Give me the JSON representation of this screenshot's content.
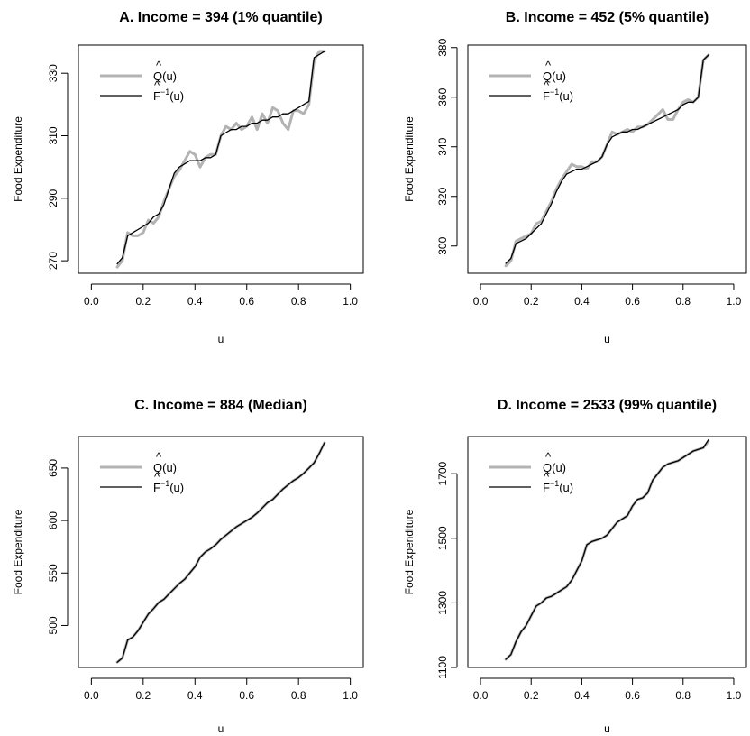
{
  "chart_data": [
    {
      "type": "line",
      "title": "A. Income = 394 (1% quantile)",
      "xlabel": "u",
      "ylabel": "Food Expenditure",
      "xlim": [
        -0.05,
        1.05
      ],
      "ylim": [
        266,
        339
      ],
      "xticks": [
        "0.0",
        "0.2",
        "0.4",
        "0.6",
        "0.8",
        "1.0"
      ],
      "yticks": [
        "270",
        "290",
        "310",
        "330"
      ],
      "legend": {
        "position": "top-left",
        "entries": [
          "Q(u)",
          "F(u)"
        ],
        "sup": "−1"
      },
      "series": [
        {
          "name": "Q(u)",
          "color": "#b3b3b3",
          "x": [
            0.1,
            0.12,
            0.14,
            0.16,
            0.18,
            0.2,
            0.22,
            0.24,
            0.26,
            0.28,
            0.3,
            0.32,
            0.34,
            0.36,
            0.38,
            0.4,
            0.42,
            0.44,
            0.46,
            0.48,
            0.5,
            0.52,
            0.54,
            0.56,
            0.58,
            0.6,
            0.62,
            0.64,
            0.66,
            0.68,
            0.7,
            0.72,
            0.74,
            0.76,
            0.78,
            0.8,
            0.82,
            0.84,
            0.86,
            0.88,
            0.9
          ],
          "y": [
            268,
            270,
            279,
            278,
            278,
            279,
            283,
            282,
            284,
            289,
            293,
            297,
            299,
            302,
            305,
            304,
            300,
            303,
            304,
            304,
            310,
            313,
            312,
            314,
            312,
            313,
            316,
            312,
            317,
            314,
            319,
            318,
            314,
            312,
            318,
            318,
            317,
            320,
            334,
            337,
            337
          ]
        },
        {
          "name": "F(u)",
          "color": "#000000",
          "x": [
            0.1,
            0.12,
            0.14,
            0.16,
            0.18,
            0.2,
            0.22,
            0.24,
            0.26,
            0.28,
            0.3,
            0.32,
            0.34,
            0.36,
            0.38,
            0.4,
            0.42,
            0.44,
            0.46,
            0.48,
            0.5,
            0.52,
            0.54,
            0.56,
            0.58,
            0.6,
            0.62,
            0.64,
            0.66,
            0.68,
            0.7,
            0.72,
            0.74,
            0.76,
            0.78,
            0.8,
            0.82,
            0.84,
            0.86,
            0.88,
            0.9
          ],
          "y": [
            269,
            271,
            278,
            279,
            280,
            281,
            282,
            284,
            285,
            288,
            293,
            298,
            300,
            301,
            302,
            302,
            302,
            303,
            303,
            304,
            310,
            311,
            312,
            312,
            313,
            313,
            314,
            314,
            315,
            315,
            316,
            316,
            317,
            317,
            318,
            319,
            320,
            321,
            335,
            336,
            337
          ]
        }
      ]
    },
    {
      "type": "line",
      "title": "B. Income = 452 (5% quantile)",
      "xlabel": "u",
      "ylabel": "Food Expenditure",
      "xlim": [
        -0.05,
        1.05
      ],
      "ylim": [
        289,
        381
      ],
      "xticks": [
        "0.0",
        "0.2",
        "0.4",
        "0.6",
        "0.8",
        "1.0"
      ],
      "yticks": [
        "300",
        "320",
        "340",
        "360",
        "380"
      ],
      "legend": {
        "position": "top-left",
        "entries": [
          "Q(u)",
          "F(u)"
        ],
        "sup": "−1"
      },
      "series": [
        {
          "name": "Q(u)",
          "color": "#b3b3b3",
          "x": [
            0.1,
            0.12,
            0.14,
            0.16,
            0.18,
            0.2,
            0.22,
            0.24,
            0.26,
            0.28,
            0.3,
            0.32,
            0.34,
            0.36,
            0.38,
            0.4,
            0.42,
            0.44,
            0.46,
            0.48,
            0.5,
            0.52,
            0.54,
            0.56,
            0.58,
            0.6,
            0.62,
            0.64,
            0.66,
            0.68,
            0.7,
            0.72,
            0.74,
            0.76,
            0.78,
            0.8,
            0.82,
            0.84,
            0.86,
            0.88,
            0.9
          ],
          "y": [
            292,
            294,
            302,
            303,
            304,
            305,
            309,
            310,
            314,
            318,
            323,
            327,
            330,
            333,
            332,
            332,
            331,
            334,
            334,
            336,
            341,
            346,
            345,
            346,
            347,
            346,
            348,
            348,
            349,
            351,
            353,
            355,
            351,
            351,
            355,
            358,
            359,
            358,
            360,
            375,
            377
          ]
        },
        {
          "name": "F(u)",
          "color": "#000000",
          "x": [
            0.1,
            0.12,
            0.14,
            0.16,
            0.18,
            0.2,
            0.22,
            0.24,
            0.26,
            0.28,
            0.3,
            0.32,
            0.34,
            0.36,
            0.38,
            0.4,
            0.42,
            0.44,
            0.46,
            0.48,
            0.5,
            0.52,
            0.54,
            0.56,
            0.58,
            0.6,
            0.62,
            0.64,
            0.66,
            0.68,
            0.7,
            0.72,
            0.74,
            0.76,
            0.78,
            0.8,
            0.82,
            0.84,
            0.86,
            0.88,
            0.9
          ],
          "y": [
            293,
            295,
            301,
            302,
            303,
            305,
            307,
            309,
            313,
            317,
            322,
            326,
            329,
            330,
            331,
            331,
            332,
            333,
            334,
            336,
            341,
            344,
            345,
            346,
            346,
            347,
            347,
            348,
            349,
            350,
            351,
            352,
            353,
            354,
            355,
            357,
            358,
            358,
            360,
            375,
            377
          ]
        }
      ]
    },
    {
      "type": "line",
      "title": "C. Income = 884 (Median)",
      "xlabel": "u",
      "ylabel": "Food Expenditure",
      "xlim": [
        -0.05,
        1.05
      ],
      "ylim": [
        460,
        680
      ],
      "xticks": [
        "0.0",
        "0.2",
        "0.4",
        "0.6",
        "0.8",
        "1.0"
      ],
      "yticks": [
        "500",
        "550",
        "600",
        "650"
      ],
      "legend": {
        "position": "top-left",
        "entries": [
          "Q(u)",
          "F(u)"
        ],
        "sup": "−1"
      },
      "series": [
        {
          "name": "Q(u)",
          "color": "#b3b3b3",
          "x": [
            0.1,
            0.12,
            0.14,
            0.16,
            0.18,
            0.2,
            0.22,
            0.24,
            0.26,
            0.28,
            0.3,
            0.32,
            0.34,
            0.36,
            0.38,
            0.4,
            0.42,
            0.44,
            0.46,
            0.48,
            0.5,
            0.52,
            0.54,
            0.56,
            0.58,
            0.6,
            0.62,
            0.64,
            0.66,
            0.68,
            0.7,
            0.72,
            0.74,
            0.76,
            0.78,
            0.8,
            0.82,
            0.84,
            0.86,
            0.88,
            0.9
          ],
          "y": [
            465,
            469,
            486,
            489,
            495,
            503,
            511,
            516,
            522,
            525,
            530,
            535,
            540,
            544,
            550,
            556,
            565,
            570,
            573,
            577,
            582,
            586,
            590,
            594,
            597,
            600,
            603,
            607,
            612,
            617,
            620,
            625,
            630,
            634,
            638,
            641,
            645,
            650,
            655,
            664,
            674
          ]
        },
        {
          "name": "F(u)",
          "color": "#000000",
          "x": [
            0.1,
            0.12,
            0.14,
            0.16,
            0.18,
            0.2,
            0.22,
            0.24,
            0.26,
            0.28,
            0.3,
            0.32,
            0.34,
            0.36,
            0.38,
            0.4,
            0.42,
            0.44,
            0.46,
            0.48,
            0.5,
            0.52,
            0.54,
            0.56,
            0.58,
            0.6,
            0.62,
            0.64,
            0.66,
            0.68,
            0.7,
            0.72,
            0.74,
            0.76,
            0.78,
            0.8,
            0.82,
            0.84,
            0.86,
            0.88,
            0.9
          ],
          "y": [
            465,
            469,
            486,
            489,
            495,
            503,
            511,
            516,
            522,
            525,
            530,
            535,
            540,
            544,
            550,
            556,
            565,
            570,
            573,
            577,
            582,
            586,
            590,
            594,
            597,
            600,
            603,
            607,
            612,
            617,
            620,
            625,
            630,
            634,
            638,
            641,
            645,
            650,
            655,
            664,
            674
          ]
        }
      ]
    },
    {
      "type": "line",
      "title": "D. Income = 2533 (99% quantile)",
      "xlabel": "u",
      "ylabel": "Food Expenditure",
      "xlim": [
        -0.05,
        1.05
      ],
      "ylim": [
        1100,
        1815
      ],
      "xticks": [
        "0.0",
        "0.2",
        "0.4",
        "0.6",
        "0.8",
        "1.0"
      ],
      "yticks": [
        "1100",
        "1300",
        "1500",
        "1700"
      ],
      "legend": {
        "position": "top-left",
        "entries": [
          "Q(u)",
          "F(u)"
        ],
        "sup": "−1"
      },
      "series": [
        {
          "name": "Q(u)",
          "color": "#b3b3b3",
          "x": [
            0.1,
            0.12,
            0.14,
            0.16,
            0.18,
            0.2,
            0.22,
            0.24,
            0.26,
            0.28,
            0.3,
            0.32,
            0.34,
            0.36,
            0.38,
            0.4,
            0.42,
            0.44,
            0.46,
            0.48,
            0.5,
            0.52,
            0.54,
            0.56,
            0.58,
            0.6,
            0.62,
            0.64,
            0.66,
            0.68,
            0.7,
            0.72,
            0.74,
            0.76,
            0.78,
            0.8,
            0.82,
            0.84,
            0.86,
            0.88,
            0.9
          ],
          "y": [
            1125,
            1140,
            1180,
            1210,
            1230,
            1260,
            1290,
            1300,
            1315,
            1320,
            1330,
            1340,
            1350,
            1370,
            1400,
            1430,
            1480,
            1490,
            1495,
            1500,
            1510,
            1530,
            1550,
            1560,
            1570,
            1600,
            1620,
            1625,
            1640,
            1680,
            1700,
            1720,
            1730,
            1735,
            1740,
            1750,
            1760,
            1770,
            1775,
            1780,
            1800
          ]
        },
        {
          "name": "F(u)",
          "color": "#000000",
          "x": [
            0.1,
            0.12,
            0.14,
            0.16,
            0.18,
            0.2,
            0.22,
            0.24,
            0.26,
            0.28,
            0.3,
            0.32,
            0.34,
            0.36,
            0.38,
            0.4,
            0.42,
            0.44,
            0.46,
            0.48,
            0.5,
            0.52,
            0.54,
            0.56,
            0.58,
            0.6,
            0.62,
            0.64,
            0.66,
            0.68,
            0.7,
            0.72,
            0.74,
            0.76,
            0.78,
            0.8,
            0.82,
            0.84,
            0.86,
            0.88,
            0.9
          ],
          "y": [
            1125,
            1140,
            1180,
            1210,
            1230,
            1260,
            1290,
            1300,
            1315,
            1320,
            1330,
            1340,
            1350,
            1370,
            1400,
            1430,
            1480,
            1490,
            1495,
            1500,
            1510,
            1530,
            1550,
            1560,
            1570,
            1600,
            1620,
            1625,
            1640,
            1680,
            1700,
            1720,
            1730,
            1735,
            1740,
            1750,
            1760,
            1770,
            1775,
            1780,
            1805
          ]
        }
      ]
    }
  ]
}
